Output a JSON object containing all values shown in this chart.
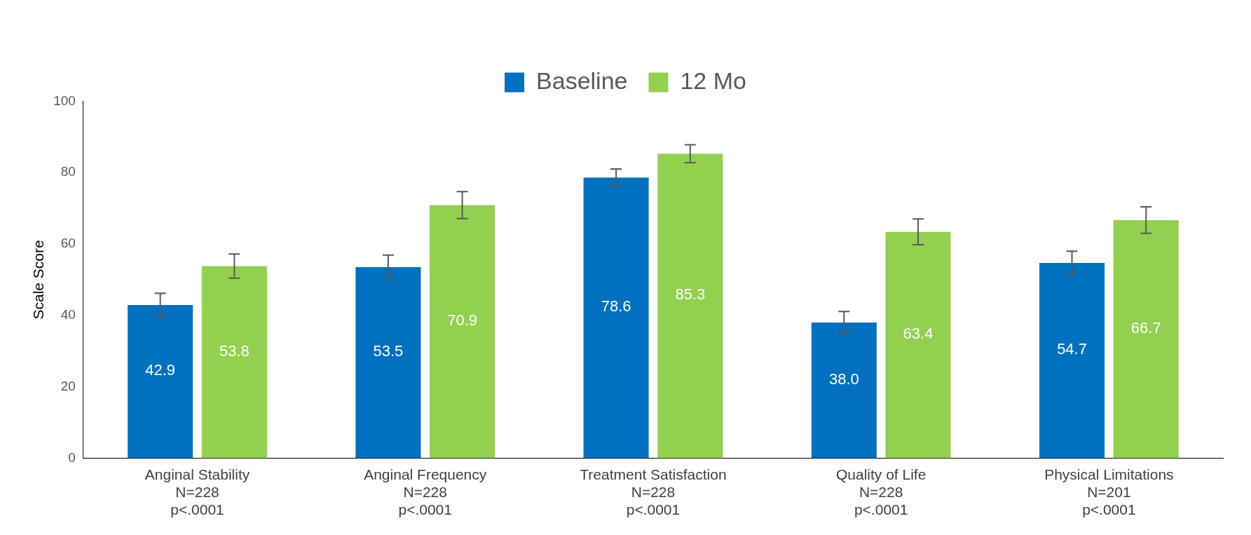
{
  "chart_data": {
    "type": "bar",
    "categories": [
      "Anginal Stability\nN=228\np<.0001",
      "Anginal Frequency\nN=228\np<.0001",
      "Treatment Satisfaction\nN=228\np<.0001",
      "Quality of Life\nN=228\np<.0001",
      "Physical Limitations\nN=201\np<.0001"
    ],
    "series": [
      {
        "name": "Baseline",
        "color": "#0070c0",
        "values": [
          42.9,
          53.5,
          78.6,
          38.0,
          54.7
        ],
        "value_labels": [
          "42.9",
          "53.5",
          "78.6",
          "38.0",
          "54.7"
        ],
        "errors": [
          3.3,
          3.4,
          2.4,
          3.1,
          3.3
        ]
      },
      {
        "name": "12 Mo",
        "color": "#92d050",
        "values": [
          53.8,
          70.9,
          85.3,
          63.4,
          66.7
        ],
        "value_labels": [
          "53.8",
          "70.9",
          "85.3",
          "63.4",
          "66.7"
        ],
        "errors": [
          3.4,
          3.8,
          2.5,
          3.6,
          3.7
        ]
      }
    ],
    "ylabel": "Scale Score",
    "ylim": [
      0,
      100
    ],
    "yticks": [
      0,
      20,
      40,
      60,
      80,
      100
    ],
    "legend": "top",
    "grid": false
  }
}
